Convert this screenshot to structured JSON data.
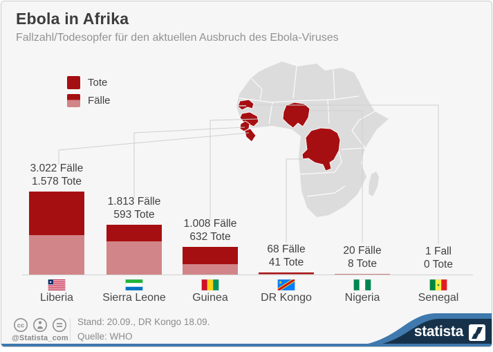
{
  "header": {
    "title": "Ebola in Afrika",
    "subtitle": "Fallzahl/Todesopfer für den aktuellen Ausbruch des Ebola-Viruses"
  },
  "legend": {
    "deaths_label": "Tote",
    "cases_label": "Fälle"
  },
  "colors": {
    "deaths": "#a60f11",
    "cases": "#d18588",
    "map_gray": "#dcdcdc",
    "connector": "#cfcfcf",
    "navy": "#16324b",
    "blue": "#3f79ad"
  },
  "chart_data": {
    "type": "bar",
    "title": "Ebola in Afrika",
    "subtitle": "Fallzahl/Todesopfer für den aktuellen Ausbruch des Ebola-Viruses",
    "note": "stacked bars: full bar height = Fälle (cases), dark top segment = Tote (deaths)",
    "categories": [
      "Liberia",
      "Sierra Leone",
      "Guinea",
      "DR Kongo",
      "Nigeria",
      "Senegal"
    ],
    "series": [
      {
        "name": "Fälle",
        "values": [
          3022,
          1813,
          1008,
          68,
          20,
          1
        ]
      },
      {
        "name": "Tote",
        "values": [
          1578,
          593,
          632,
          41,
          8,
          0
        ]
      }
    ],
    "ylim": [
      0,
      3022
    ],
    "grid": false,
    "legend_position": "top-left",
    "countries": [
      {
        "name": "Liberia",
        "cases": 3022,
        "deaths": 1578,
        "cases_label": "3.022 Fälle",
        "deaths_label": "1.578 Tote"
      },
      {
        "name": "Sierra Leone",
        "cases": 1813,
        "deaths": 593,
        "cases_label": "1.813 Fälle",
        "deaths_label": "593 Tote"
      },
      {
        "name": "Guinea",
        "cases": 1008,
        "deaths": 632,
        "cases_label": "1.008 Fälle",
        "deaths_label": "632 Tote"
      },
      {
        "name": "DR Kongo",
        "cases": 68,
        "deaths": 41,
        "cases_label": "68 Fälle",
        "deaths_label": "41 Tote"
      },
      {
        "name": "Nigeria",
        "cases": 20,
        "deaths": 8,
        "cases_label": "20 Fälle",
        "deaths_label": "8 Tote"
      },
      {
        "name": "Senegal",
        "cases": 1,
        "deaths": 0,
        "cases_label": "1 Fall",
        "deaths_label": "0 Tote"
      }
    ]
  },
  "map": {
    "highlighted_countries": [
      "Senegal",
      "Guinea",
      "Sierra Leone",
      "Liberia",
      "Nigeria",
      "DR Kongo"
    ]
  },
  "footer": {
    "license_icons": [
      "cc",
      "attribution",
      "no-derivatives"
    ],
    "handle": "@Statista_com",
    "status": "Stand: 20.09., DR Kongo 18.09.",
    "source": "Quelle: WHO",
    "brand": "statista"
  }
}
